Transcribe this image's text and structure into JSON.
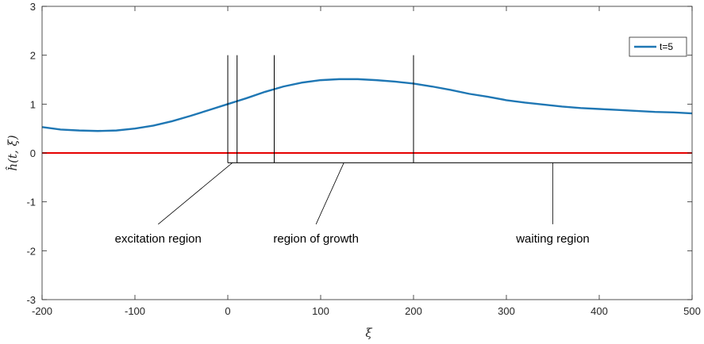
{
  "chart_data": {
    "type": "line",
    "xlabel": "ξ",
    "ylabel": "ĥ(t, ξ)",
    "xlim": [
      -200,
      500
    ],
    "ylim": [
      -3,
      3
    ],
    "xticks": [
      -200,
      -100,
      0,
      100,
      200,
      300,
      400,
      500
    ],
    "yticks": [
      -3,
      -2,
      -1,
      0,
      1,
      2,
      3
    ],
    "grid": false,
    "legend": {
      "placement": "top-right",
      "entries": [
        "t=5"
      ]
    },
    "series": [
      {
        "name": "t=5",
        "color": "#1f77b4",
        "x": [
          -200,
          -180,
          -160,
          -140,
          -120,
          -100,
          -80,
          -60,
          -40,
          -20,
          0,
          20,
          40,
          60,
          80,
          100,
          120,
          140,
          160,
          180,
          200,
          220,
          240,
          260,
          280,
          300,
          320,
          340,
          360,
          380,
          400,
          420,
          440,
          460,
          480,
          500
        ],
        "y": [
          0.53,
          0.48,
          0.46,
          0.45,
          0.46,
          0.5,
          0.56,
          0.65,
          0.76,
          0.88,
          1.0,
          1.12,
          1.25,
          1.36,
          1.44,
          1.49,
          1.51,
          1.51,
          1.49,
          1.46,
          1.42,
          1.36,
          1.29,
          1.21,
          1.15,
          1.08,
          1.03,
          0.99,
          0.95,
          0.92,
          0.9,
          0.88,
          0.86,
          0.84,
          0.83,
          0.81
        ]
      },
      {
        "name": "",
        "color": "#e60000",
        "x": [
          -200,
          500
        ],
        "y": [
          0,
          0
        ]
      }
    ],
    "regions": [
      {
        "label": "excitation region",
        "x0": 0,
        "x1": 10,
        "label_x": -75,
        "label_y": -1.75
      },
      {
        "label": "region of growth",
        "x0": 50,
        "x1": 200,
        "label_x": 95,
        "label_y": -1.75
      },
      {
        "label": "waiting region",
        "x0": 200,
        "x1": 500,
        "label_x": 350,
        "label_y": -1.75
      }
    ],
    "region_markers": {
      "vertical_lines_x": [
        0,
        10,
        50,
        200
      ],
      "vertical_top_y": 2,
      "bracket_y": -0.2,
      "bracket_x_from": 0,
      "bracket_x_to": 500,
      "color": "#000000"
    }
  }
}
